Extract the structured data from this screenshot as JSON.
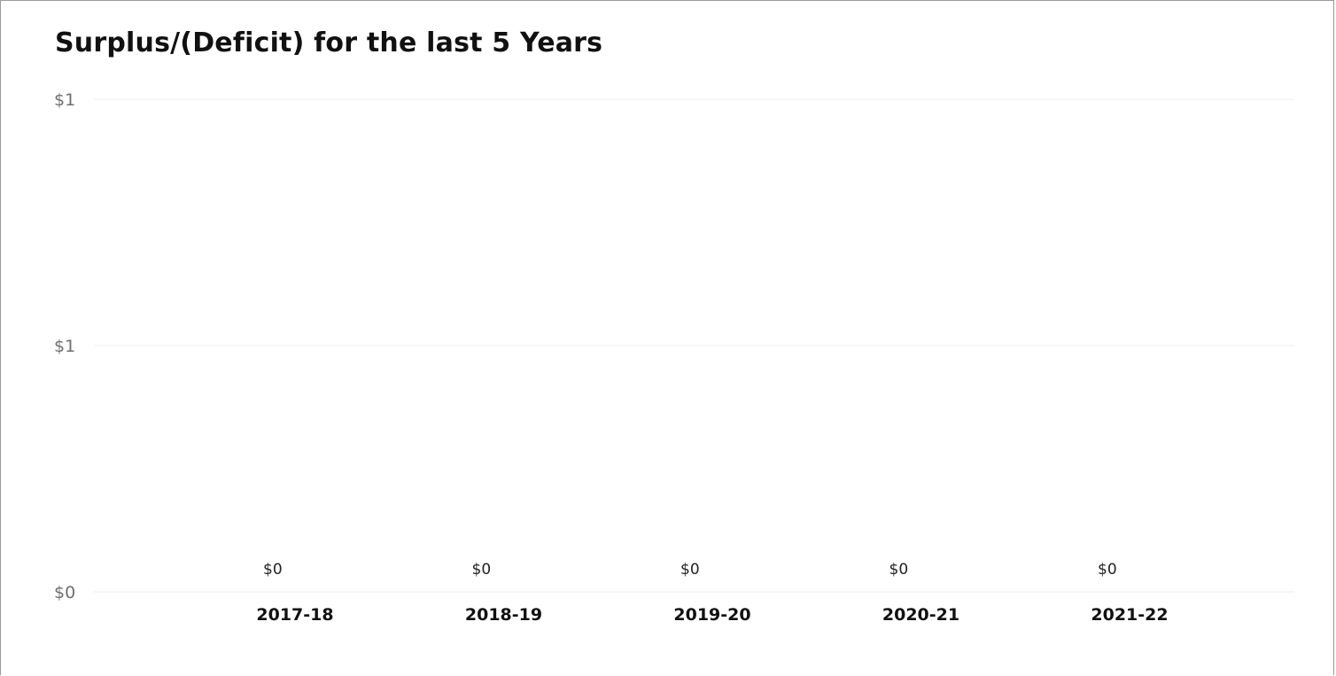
{
  "chart_data": {
    "type": "bar",
    "title": "Surplus/(Deficit) for the last 5 Years",
    "categories": [
      "2017-18",
      "2018-19",
      "2019-20",
      "2020-21",
      "2021-22"
    ],
    "values": [
      0,
      0,
      0,
      0,
      0
    ],
    "data_labels": [
      "$0",
      "$0",
      "$0",
      "$0",
      "$0"
    ],
    "y_ticks": [
      {
        "value": 0,
        "label": "$0"
      },
      {
        "value": 0.5,
        "label": "$1"
      },
      {
        "value": 1,
        "label": "$1"
      }
    ],
    "ylim": [
      0,
      1
    ],
    "grid": true,
    "xlabel": "",
    "ylabel": ""
  },
  "colors": {
    "gridline": "#ececec",
    "bar": "#118dff"
  }
}
